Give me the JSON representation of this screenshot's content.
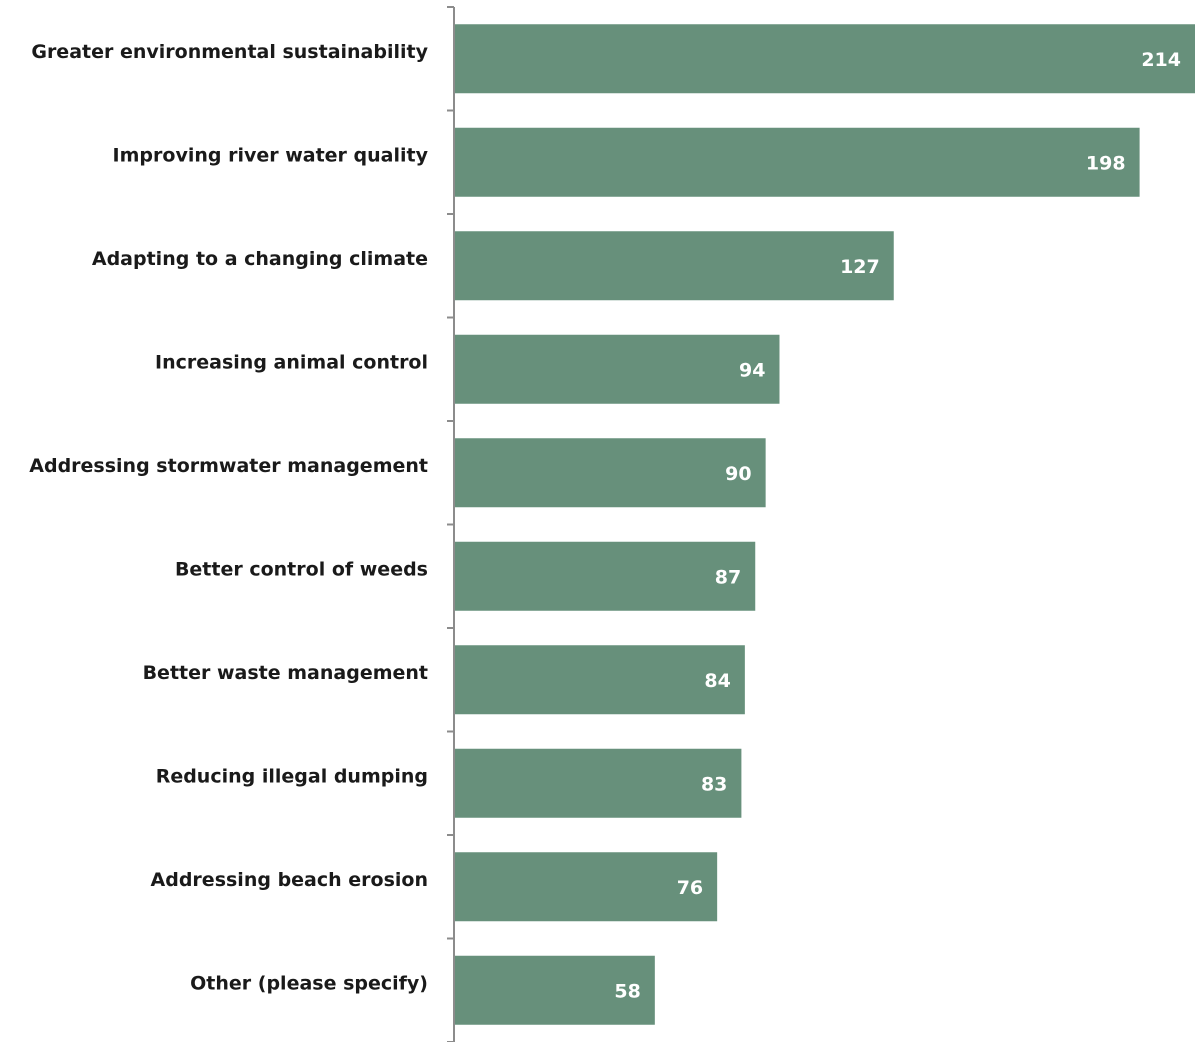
{
  "chart_data": {
    "type": "bar",
    "orientation": "horizontal",
    "title": "",
    "xlabel": "",
    "ylabel": "",
    "categories": [
      "Greater environmental sustainability",
      "Improving river water quality",
      "Adapting to a changing climate",
      "Increasing animal control",
      "Addressing stormwater management",
      "Better control of weeds",
      "Better waste management",
      "Reducing illegal dumping",
      "Addressing beach erosion",
      "Other (please specify)"
    ],
    "values": [
      214,
      198,
      127,
      94,
      90,
      87,
      84,
      83,
      76,
      58
    ],
    "xlim": [
      0,
      214
    ],
    "grid": false,
    "legend": "none",
    "data_labels": "inside-end",
    "bar_color": "#67907b",
    "label_color": "#ffffff"
  }
}
